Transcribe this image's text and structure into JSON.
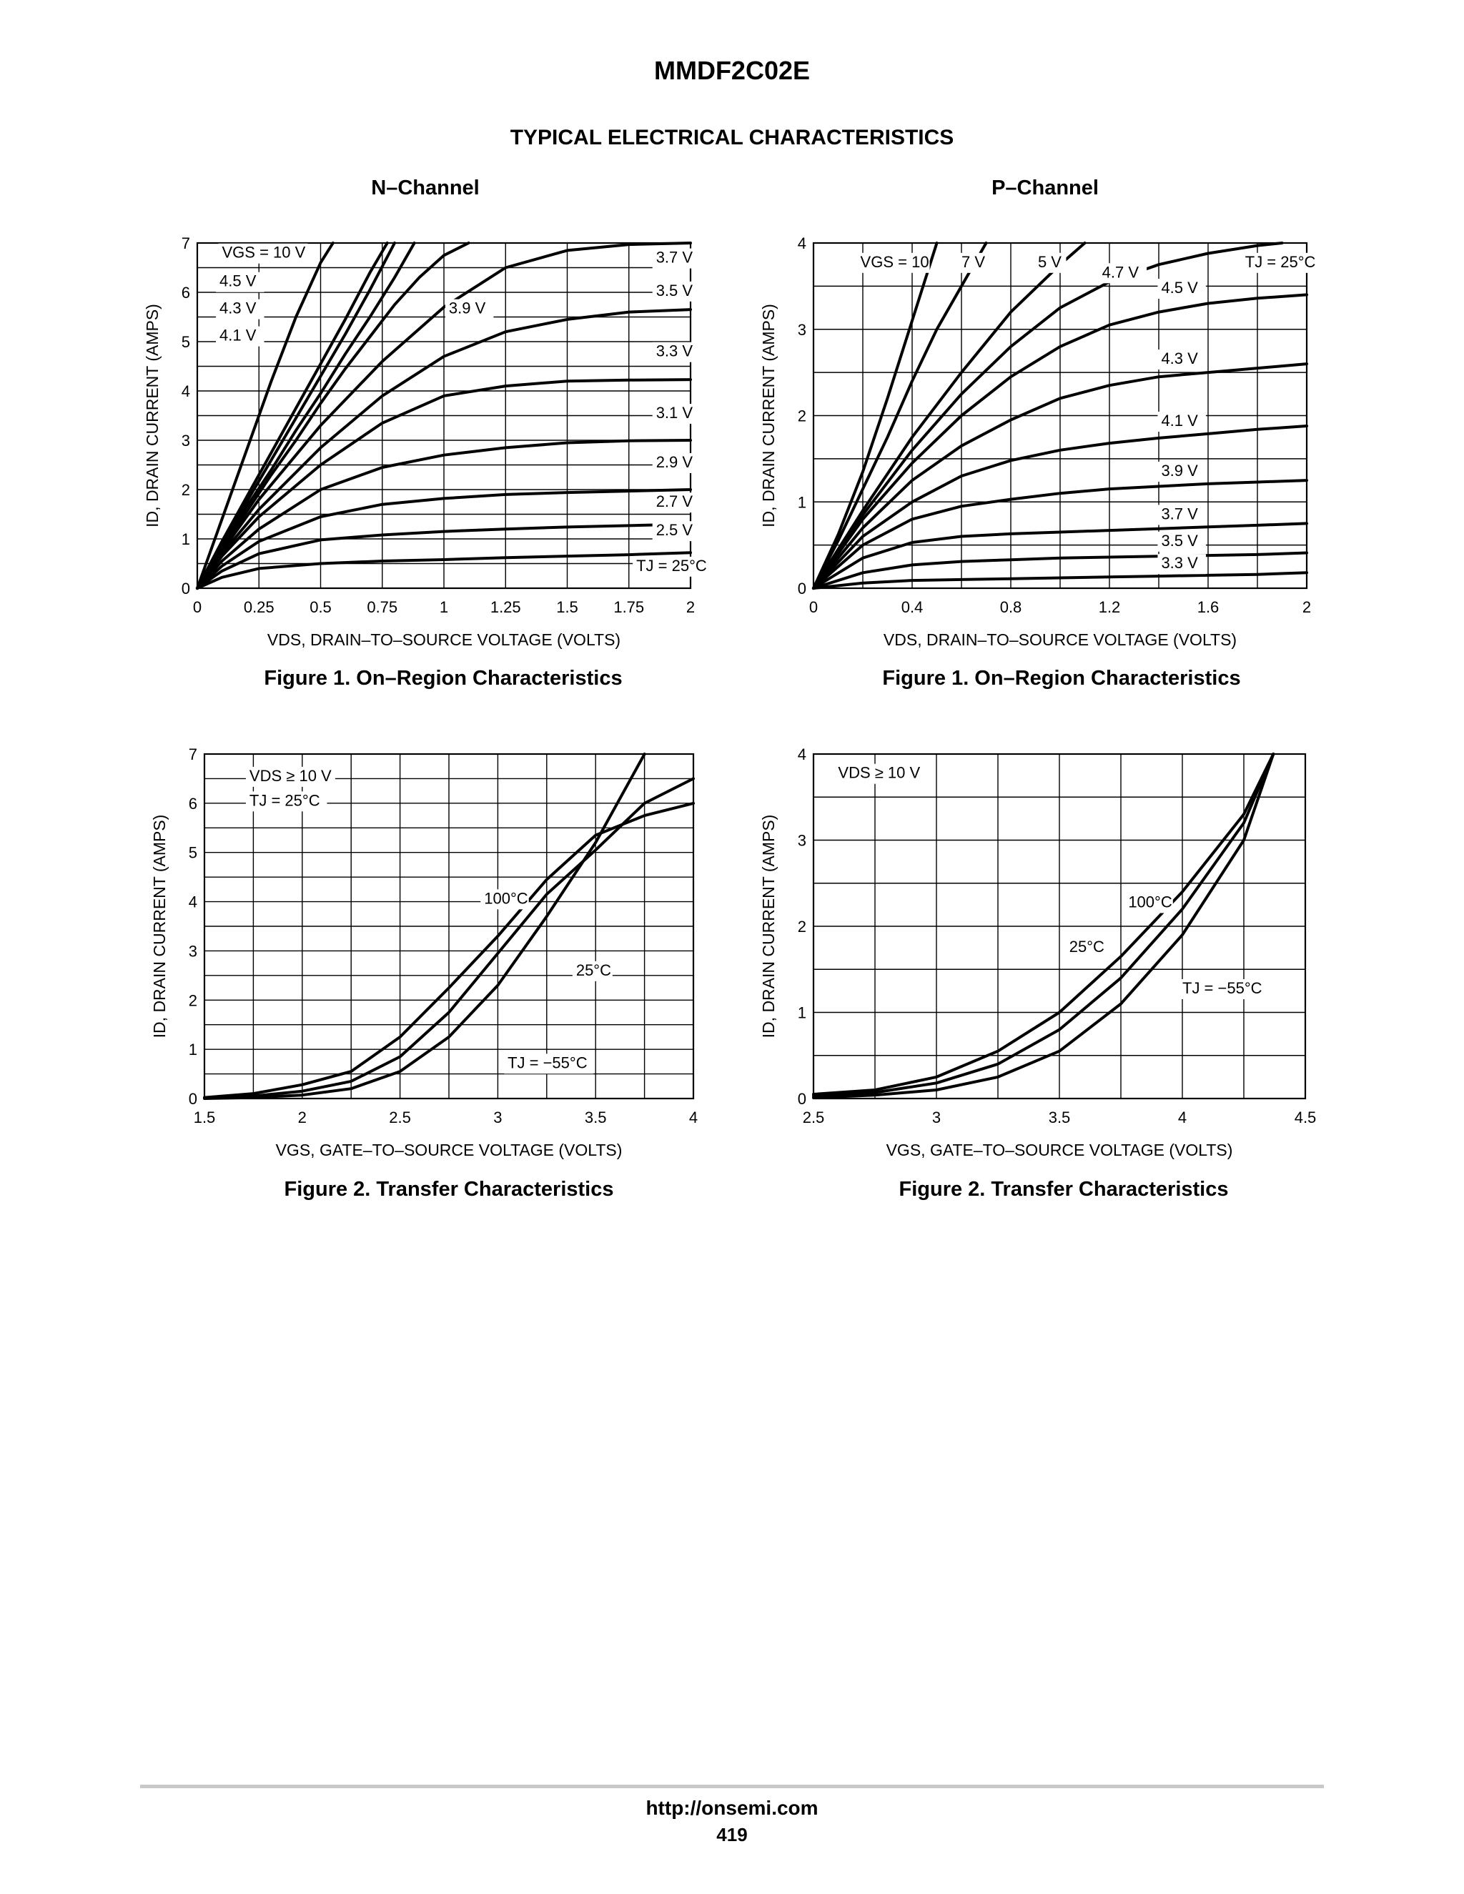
{
  "document": {
    "part_number": "MMDF2C02E",
    "section_title": "TYPICAL ELECTRICAL CHARACTERISTICS",
    "column_n": "N–Channel",
    "column_p": "P–Channel",
    "footer_url": "http://onsemi.com",
    "page_number": "419"
  },
  "captions": {
    "fig1_n": "Figure 1. On–Region Characteristics",
    "fig1_p": "Figure 1. On–Region Characteristics",
    "fig2_n": "Figure 2. Transfer Characteristics",
    "fig2_p": "Figure 2. Transfer Characteristics"
  },
  "chart_data": [
    {
      "type": "line",
      "xlabel": "VDS, DRAIN–TO–SOURCE VOLTAGE (VOLTS)",
      "ylabel": "ID, DRAIN CURRENT (AMPS)",
      "xlim": [
        0,
        2
      ],
      "ylim": [
        0,
        7
      ],
      "xticks": [
        "0",
        "0.25",
        "0.5",
        "0.75",
        "1",
        "1.25",
        "1.5",
        "1.75",
        "2"
      ],
      "yticks": [
        "0",
        "1",
        "2",
        "3",
        "4",
        "5",
        "6",
        "7"
      ],
      "grid": true,
      "annotation": "TJ = 25°C",
      "series": [
        {
          "name": "VGS = 10 V",
          "x": [
            0,
            0.1,
            0.2,
            0.3,
            0.4,
            0.5,
            0.55
          ],
          "y": [
            0,
            1.4,
            2.8,
            4.2,
            5.5,
            6.6,
            7.0
          ]
        },
        {
          "name": "4.5 V",
          "x": [
            0,
            0.1,
            0.2,
            0.3,
            0.4,
            0.5,
            0.6,
            0.7,
            0.77
          ],
          "y": [
            0,
            0.95,
            1.85,
            2.75,
            3.65,
            4.55,
            5.45,
            6.4,
            7.0
          ]
        },
        {
          "name": "4.3 V",
          "x": [
            0,
            0.1,
            0.2,
            0.3,
            0.4,
            0.5,
            0.6,
            0.7,
            0.8
          ],
          "y": [
            0,
            0.9,
            1.75,
            2.6,
            3.45,
            4.3,
            5.15,
            6.05,
            7.0
          ]
        },
        {
          "name": "4.1 V",
          "x": [
            0,
            0.1,
            0.2,
            0.3,
            0.4,
            0.5,
            0.6,
            0.7,
            0.8,
            0.88
          ],
          "y": [
            0,
            0.85,
            1.65,
            2.4,
            3.2,
            3.95,
            4.75,
            5.5,
            6.3,
            7.0
          ]
        },
        {
          "name": "3.9 V",
          "x": [
            0,
            0.1,
            0.2,
            0.3,
            0.4,
            0.5,
            0.6,
            0.7,
            0.8,
            0.9,
            1.0,
            1.1
          ],
          "y": [
            0,
            0.8,
            1.55,
            2.3,
            3.0,
            3.75,
            4.45,
            5.1,
            5.75,
            6.3,
            6.75,
            7.0
          ]
        },
        {
          "name": "3.7 V",
          "x": [
            0,
            0.1,
            0.25,
            0.5,
            0.75,
            1.0,
            1.25,
            1.5,
            1.75,
            2.0
          ],
          "y": [
            0,
            0.75,
            1.8,
            3.3,
            4.6,
            5.7,
            6.5,
            6.85,
            6.97,
            7.0
          ]
        },
        {
          "name": "3.5 V",
          "x": [
            0,
            0.1,
            0.25,
            0.5,
            0.75,
            1.0,
            1.25,
            1.5,
            1.75,
            2.0
          ],
          "y": [
            0,
            0.7,
            1.6,
            2.85,
            3.9,
            4.7,
            5.2,
            5.45,
            5.6,
            5.65
          ]
        },
        {
          "name": "3.3 V",
          "x": [
            0,
            0.1,
            0.25,
            0.5,
            0.75,
            1.0,
            1.25,
            1.5,
            1.75,
            2.0
          ],
          "y": [
            0,
            0.65,
            1.45,
            2.5,
            3.35,
            3.9,
            4.1,
            4.2,
            4.22,
            4.23
          ]
        },
        {
          "name": "3.1 V",
          "x": [
            0,
            0.1,
            0.25,
            0.5,
            0.75,
            1.0,
            1.25,
            1.5,
            1.75,
            2.0
          ],
          "y": [
            0,
            0.55,
            1.2,
            2.0,
            2.45,
            2.7,
            2.85,
            2.95,
            2.99,
            3.0
          ]
        },
        {
          "name": "2.9 V",
          "x": [
            0,
            0.1,
            0.25,
            0.5,
            0.75,
            1.0,
            1.25,
            1.5,
            1.75,
            2.0
          ],
          "y": [
            0,
            0.45,
            0.95,
            1.45,
            1.7,
            1.82,
            1.9,
            1.94,
            1.97,
            2.0
          ]
        },
        {
          "name": "2.7 V",
          "x": [
            0,
            0.1,
            0.25,
            0.5,
            0.75,
            1.0,
            1.25,
            1.5,
            1.75,
            2.0
          ],
          "y": [
            0,
            0.35,
            0.7,
            0.98,
            1.08,
            1.15,
            1.2,
            1.24,
            1.27,
            1.3
          ]
        },
        {
          "name": "2.5 V",
          "x": [
            0,
            0.1,
            0.25,
            0.5,
            0.75,
            1.0,
            1.25,
            1.5,
            1.75,
            2.0
          ],
          "y": [
            0,
            0.22,
            0.4,
            0.5,
            0.55,
            0.58,
            0.62,
            0.65,
            0.68,
            0.72
          ]
        }
      ],
      "labels": [
        {
          "text": "VGS = 10 V",
          "x": 0.1,
          "y": 6.7
        },
        {
          "text": "4.5 V",
          "x": 0.09,
          "y": 6.12
        },
        {
          "text": "4.3 V",
          "x": 0.09,
          "y": 5.57
        },
        {
          "text": "4.1 V",
          "x": 0.09,
          "y": 5.02
        },
        {
          "text": "3.9 V",
          "x": 1.02,
          "y": 5.57
        },
        {
          "text": "3.7 V",
          "x": 1.86,
          "y": 6.6
        },
        {
          "text": "3.5 V",
          "x": 1.86,
          "y": 5.93
        },
        {
          "text": "3.3 V",
          "x": 1.86,
          "y": 4.7
        },
        {
          "text": "3.1 V",
          "x": 1.86,
          "y": 3.45
        },
        {
          "text": "2.9 V",
          "x": 1.86,
          "y": 2.45
        },
        {
          "text": "2.7 V",
          "x": 1.86,
          "y": 1.65
        },
        {
          "text": "2.5 V",
          "x": 1.86,
          "y": 1.07
        },
        {
          "text": "TJ = 25°C",
          "x": 1.78,
          "y": 0.35
        }
      ]
    },
    {
      "type": "line",
      "xlabel": "VDS, DRAIN–TO–SOURCE VOLTAGE (VOLTS)",
      "ylabel": "ID, DRAIN CURRENT (AMPS)",
      "xlim": [
        0,
        2
      ],
      "ylim": [
        0,
        4
      ],
      "xticks": [
        "0",
        "0.4",
        "0.8",
        "1.2",
        "1.6",
        "2"
      ],
      "yticks": [
        "0",
        "1",
        "2",
        "3",
        "4"
      ],
      "grid": true,
      "annotation": "TJ = 25°C",
      "series": [
        {
          "name": "VGS = 10",
          "x": [
            0,
            0.1,
            0.2,
            0.3,
            0.4,
            0.5
          ],
          "y": [
            0,
            0.62,
            1.35,
            2.2,
            3.1,
            4.0
          ]
        },
        {
          "name": "7 V",
          "x": [
            0,
            0.1,
            0.2,
            0.3,
            0.4,
            0.5,
            0.6,
            0.7
          ],
          "y": [
            0,
            0.55,
            1.15,
            1.75,
            2.4,
            3.0,
            3.5,
            4.0
          ]
        },
        {
          "name": "5 V",
          "x": [
            0,
            0.2,
            0.4,
            0.6,
            0.8,
            1.0,
            1.1
          ],
          "y": [
            0,
            0.9,
            1.75,
            2.5,
            3.2,
            3.75,
            4.0
          ]
        },
        {
          "name": "4.7 V",
          "x": [
            0,
            0.2,
            0.4,
            0.6,
            0.8,
            1.0,
            1.2,
            1.4,
            1.6,
            1.8,
            1.9
          ],
          "y": [
            0,
            0.85,
            1.6,
            2.25,
            2.8,
            3.25,
            3.55,
            3.75,
            3.88,
            3.97,
            4.0
          ]
        },
        {
          "name": "4.5 V",
          "x": [
            0,
            0.2,
            0.4,
            0.6,
            0.8,
            1.0,
            1.2,
            1.4,
            1.6,
            1.8,
            2.0
          ],
          "y": [
            0,
            0.8,
            1.45,
            2.0,
            2.45,
            2.8,
            3.05,
            3.2,
            3.3,
            3.36,
            3.4
          ]
        },
        {
          "name": "4.3 V",
          "x": [
            0,
            0.2,
            0.4,
            0.6,
            0.8,
            1.0,
            1.2,
            1.4,
            1.6,
            1.8,
            2.0
          ],
          "y": [
            0,
            0.7,
            1.25,
            1.65,
            1.95,
            2.2,
            2.35,
            2.45,
            2.5,
            2.55,
            2.6
          ]
        },
        {
          "name": "4.1 V",
          "x": [
            0,
            0.2,
            0.4,
            0.6,
            0.8,
            1.0,
            1.2,
            1.4,
            1.6,
            1.8,
            2.0
          ],
          "y": [
            0,
            0.6,
            1.0,
            1.3,
            1.48,
            1.6,
            1.68,
            1.74,
            1.79,
            1.84,
            1.88
          ]
        },
        {
          "name": "3.9 V",
          "x": [
            0,
            0.2,
            0.4,
            0.6,
            0.8,
            1.0,
            1.2,
            1.4,
            1.6,
            1.8,
            2.0
          ],
          "y": [
            0,
            0.5,
            0.8,
            0.95,
            1.03,
            1.1,
            1.15,
            1.18,
            1.21,
            1.23,
            1.25
          ]
        },
        {
          "name": "3.7 V",
          "x": [
            0,
            0.2,
            0.4,
            0.6,
            0.8,
            1.0,
            1.2,
            1.4,
            1.6,
            1.8,
            2.0
          ],
          "y": [
            0,
            0.35,
            0.53,
            0.6,
            0.63,
            0.65,
            0.67,
            0.69,
            0.71,
            0.73,
            0.75
          ]
        },
        {
          "name": "3.5 V",
          "x": [
            0,
            0.2,
            0.4,
            0.6,
            0.8,
            1.0,
            1.2,
            1.4,
            1.6,
            1.8,
            2.0
          ],
          "y": [
            0,
            0.18,
            0.27,
            0.31,
            0.33,
            0.35,
            0.36,
            0.37,
            0.38,
            0.39,
            0.41
          ]
        },
        {
          "name": "3.3 V",
          "x": [
            0,
            0.2,
            0.4,
            0.6,
            0.8,
            1.0,
            1.2,
            1.4,
            1.6,
            1.8,
            2.0
          ],
          "y": [
            0,
            0.06,
            0.09,
            0.1,
            0.11,
            0.12,
            0.13,
            0.14,
            0.15,
            0.16,
            0.18
          ]
        }
      ],
      "labels": [
        {
          "text": "VGS = 10",
          "x": 0.19,
          "y": 3.72
        },
        {
          "text": "7 V",
          "x": 0.6,
          "y": 3.72
        },
        {
          "text": "5 V",
          "x": 0.91,
          "y": 3.72
        },
        {
          "text": "4.7 V",
          "x": 1.17,
          "y": 3.6
        },
        {
          "text": "TJ = 25°C",
          "x": 1.75,
          "y": 3.72
        },
        {
          "text": "4.5 V",
          "x": 1.41,
          "y": 3.42
        },
        {
          "text": "4.3 V",
          "x": 1.41,
          "y": 2.6
        },
        {
          "text": "4.1 V",
          "x": 1.41,
          "y": 1.88
        },
        {
          "text": "3.9 V",
          "x": 1.41,
          "y": 1.3
        },
        {
          "text": "3.7 V",
          "x": 1.41,
          "y": 0.8
        },
        {
          "text": "3.5 V",
          "x": 1.41,
          "y": 0.49
        },
        {
          "text": "3.3 V",
          "x": 1.41,
          "y": 0.23
        }
      ]
    },
    {
      "type": "line",
      "xlabel": "VGS, GATE–TO–SOURCE VOLTAGE (VOLTS)",
      "ylabel": "ID, DRAIN CURRENT (AMPS)",
      "xlim": [
        1.5,
        4
      ],
      "ylim": [
        0,
        7
      ],
      "xticks": [
        "1.5",
        "2",
        "2.5",
        "3",
        "3.5",
        "4"
      ],
      "yticks": [
        "0",
        "1",
        "2",
        "3",
        "4",
        "5",
        "6",
        "7"
      ],
      "grid": true,
      "series": [
        {
          "name": "100°C",
          "x": [
            1.5,
            1.75,
            2.0,
            2.25,
            2.5,
            2.75,
            3.0,
            3.25,
            3.5,
            3.75,
            4.0
          ],
          "y": [
            0.02,
            0.1,
            0.28,
            0.55,
            1.25,
            2.25,
            3.3,
            4.45,
            5.35,
            5.75,
            6.0
          ]
        },
        {
          "name": "25°C",
          "x": [
            1.5,
            1.75,
            2.0,
            2.25,
            2.5,
            2.75,
            3.0,
            3.25,
            3.5,
            3.75,
            4.0
          ],
          "y": [
            0.01,
            0.05,
            0.15,
            0.35,
            0.85,
            1.75,
            2.95,
            4.15,
            5.05,
            6.0,
            6.5
          ]
        },
        {
          "name": "TJ = −55°C",
          "x": [
            1.5,
            1.75,
            2.0,
            2.25,
            2.5,
            2.75,
            3.0,
            3.25,
            3.5,
            3.75
          ],
          "y": [
            0.0,
            0.02,
            0.07,
            0.2,
            0.55,
            1.25,
            2.3,
            3.7,
            5.2,
            7.0
          ]
        }
      ],
      "labels": [
        {
          "text": "VDS ≥ 10 V",
          "x": 1.73,
          "y": 6.45
        },
        {
          "text": "TJ = 25°C",
          "x": 1.73,
          "y": 5.95
        },
        {
          "text": "100°C",
          "x": 2.93,
          "y": 3.96
        },
        {
          "text": "25°C",
          "x": 3.4,
          "y": 2.5
        },
        {
          "text": "TJ = −55°C",
          "x": 3.05,
          "y": 0.62
        }
      ]
    },
    {
      "type": "line",
      "xlabel": "VGS, GATE–TO–SOURCE VOLTAGE (VOLTS)",
      "ylabel": "ID, DRAIN CURRENT (AMPS)",
      "xlim": [
        2.5,
        4.5
      ],
      "ylim": [
        0,
        4
      ],
      "xticks": [
        "2.5",
        "3",
        "3.5",
        "4",
        "4.5"
      ],
      "yticks": [
        "0",
        "1",
        "2",
        "3",
        "4"
      ],
      "grid": true,
      "series": [
        {
          "name": "100°C",
          "x": [
            2.5,
            2.75,
            3.0,
            3.25,
            3.5,
            3.75,
            4.0,
            4.25,
            4.37
          ],
          "y": [
            0.05,
            0.1,
            0.25,
            0.55,
            1.0,
            1.65,
            2.4,
            3.3,
            4.0
          ]
        },
        {
          "name": "25°C",
          "x": [
            2.5,
            2.75,
            3.0,
            3.25,
            3.5,
            3.75,
            4.0,
            4.25,
            4.37
          ],
          "y": [
            0.03,
            0.07,
            0.18,
            0.4,
            0.8,
            1.4,
            2.2,
            3.2,
            4.0
          ]
        },
        {
          "name": "TJ = −55°C",
          "x": [
            2.5,
            2.75,
            3.0,
            3.25,
            3.5,
            3.75,
            4.0,
            4.25,
            4.37
          ],
          "y": [
            0.01,
            0.04,
            0.1,
            0.25,
            0.55,
            1.1,
            1.9,
            3.0,
            4.0
          ]
        }
      ],
      "labels": [
        {
          "text": "VDS ≥ 10 V",
          "x": 2.6,
          "y": 3.72
        },
        {
          "text": "100°C",
          "x": 3.78,
          "y": 2.22
        },
        {
          "text": "25°C",
          "x": 3.54,
          "y": 1.7
        },
        {
          "text": "TJ = −55°C",
          "x": 4.0,
          "y": 1.22
        }
      ]
    }
  ]
}
